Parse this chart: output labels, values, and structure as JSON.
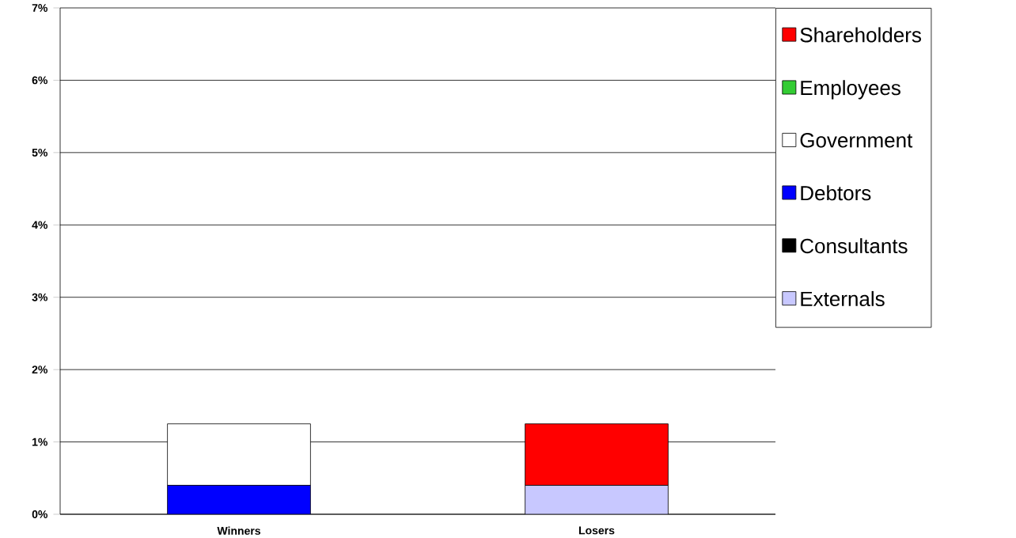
{
  "chart_data": {
    "type": "bar",
    "stacked": true,
    "categories": [
      "Winners",
      "Losers"
    ],
    "series": [
      {
        "name": "Externals",
        "color": "#c8c8ff",
        "values": [
          null,
          0.4
        ]
      },
      {
        "name": "Consultants",
        "color": "#000000",
        "values": [
          null,
          null
        ]
      },
      {
        "name": "Debtors",
        "color": "#0000ff",
        "values": [
          0.4,
          null
        ]
      },
      {
        "name": "Government",
        "color": "#ffffff",
        "values": [
          0.85,
          null
        ]
      },
      {
        "name": "Employees",
        "color": "#33cc33",
        "values": [
          null,
          null
        ]
      },
      {
        "name": "Shareholders",
        "color": "#ff0000",
        "values": [
          null,
          0.85
        ]
      }
    ],
    "ylim": [
      0,
      7
    ],
    "yticks": [
      {
        "value": 0,
        "label": "0%"
      },
      {
        "value": 1,
        "label": "1%"
      },
      {
        "value": 2,
        "label": "2%"
      },
      {
        "value": 3,
        "label": "3%"
      },
      {
        "value": 4,
        "label": "4%"
      },
      {
        "value": 5,
        "label": "5%"
      },
      {
        "value": 6,
        "label": "6%"
      },
      {
        "value": 7,
        "label": "7%"
      }
    ],
    "grid": "y",
    "legend": "right"
  }
}
